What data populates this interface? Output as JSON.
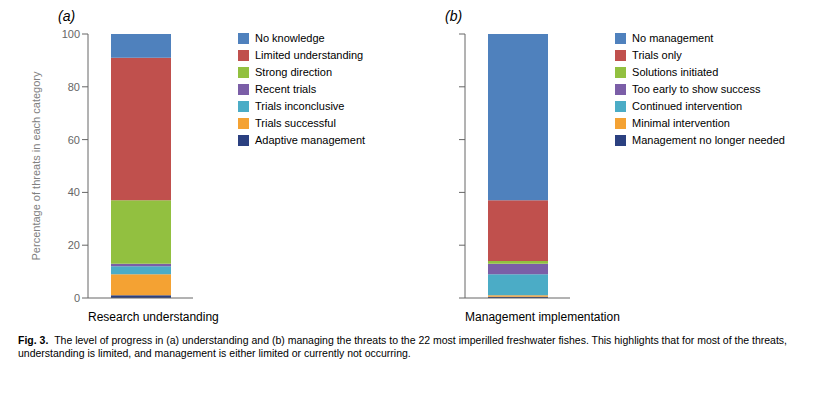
{
  "chart_data": [
    {
      "type": "bar",
      "stacked": true,
      "title": "(a)",
      "xlabel": "Research understanding",
      "ylabel": "Percentage of threats in each category",
      "categories": [
        null
      ],
      "series": [
        {
          "name": "Adaptive management",
          "color": "#2B4080",
          "values": [
            1
          ]
        },
        {
          "name": "Trials successful",
          "color": "#F4A233",
          "values": [
            8
          ]
        },
        {
          "name": "Trials inconclusive",
          "color": "#4BACC6",
          "values": [
            3
          ]
        },
        {
          "name": "Recent trials",
          "color": "#7B5EA7",
          "values": [
            1
          ]
        },
        {
          "name": "Strong direction",
          "color": "#92C040",
          "values": [
            24
          ]
        },
        {
          "name": "Limited understanding",
          "color": "#C0504D",
          "values": [
            54
          ]
        },
        {
          "name": "No knowledge",
          "color": "#4F81BD",
          "values": [
            9
          ]
        }
      ],
      "ylim": [
        0,
        100
      ],
      "yticks": [
        0,
        20,
        40,
        60,
        80,
        100
      ],
      "grid": false,
      "legend": "right",
      "tick_labels": "y",
      "annotations": [
        "Fig. 3.",
        "The level of progress in (a) understanding and (b) managing the threats to the 22 most imperilled freshwater fishes. This highlights that for most of the threats, understanding is limited, and management is either limited or currently not occurring."
      ]
    },
    {
      "type": "bar",
      "stacked": true,
      "title": "(b)",
      "xlabel": "Management implementation",
      "categories": [
        null
      ],
      "series": [
        {
          "name": "Management no longer needed",
          "color": "#2B4080",
          "values": [
            0.5
          ]
        },
        {
          "name": "Minimal intervention",
          "color": "#F4A233",
          "values": [
            0.5
          ]
        },
        {
          "name": "Continued intervention",
          "color": "#4BACC6",
          "values": [
            8
          ]
        },
        {
          "name": "Too early to show success",
          "color": "#7B5EA7",
          "values": [
            4
          ]
        },
        {
          "name": "Solutions initiated",
          "color": "#92C040",
          "values": [
            1
          ]
        },
        {
          "name": "Trials only",
          "color": "#C0504D",
          "values": [
            23
          ]
        },
        {
          "name": "No management",
          "color": "#4F81BD",
          "values": [
            63
          ]
        }
      ],
      "ylim": [
        0,
        100
      ],
      "yticks": [
        0,
        20,
        40,
        60,
        80,
        100
      ],
      "grid": false,
      "legend": "right",
      "tick_labels": false
    }
  ]
}
